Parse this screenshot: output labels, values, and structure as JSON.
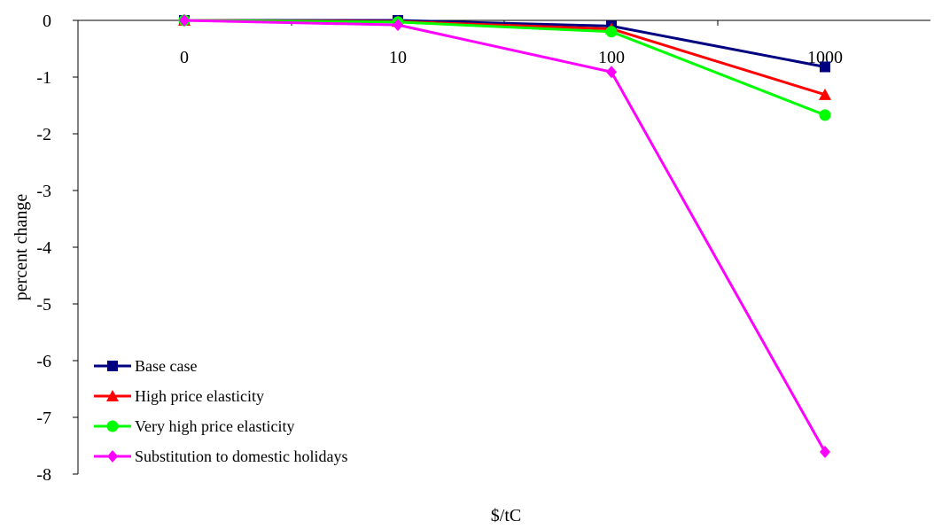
{
  "chart_data": {
    "type": "line",
    "title": "",
    "xlabel": "$/tC",
    "ylabel": "percent change",
    "categories": [
      "0",
      "10",
      "100",
      "1000"
    ],
    "ylim": [
      -8,
      0
    ],
    "yticks": [
      "0",
      "-1",
      "-2",
      "-3",
      "-4",
      "-5",
      "-6",
      "-7",
      "-8"
    ],
    "grid": false,
    "legend_position": "bottom-left",
    "series": [
      {
        "name": "Base case",
        "values": [
          0,
          0,
          -0.1,
          -0.82
        ],
        "color": "#000080",
        "marker": "square"
      },
      {
        "name": "High price elasticity",
        "values": [
          0,
          -0.02,
          -0.15,
          -1.31
        ],
        "color": "#ff0000",
        "marker": "triangle"
      },
      {
        "name": "Very high price elasticity",
        "values": [
          0,
          -0.03,
          -0.2,
          -1.67
        ],
        "color": "#00ff00",
        "marker": "circle"
      },
      {
        "name": "Substitution to domestic holidays",
        "values": [
          0,
          -0.08,
          -0.91,
          -7.61
        ],
        "color": "#ff00ff",
        "marker": "diamond"
      }
    ]
  }
}
